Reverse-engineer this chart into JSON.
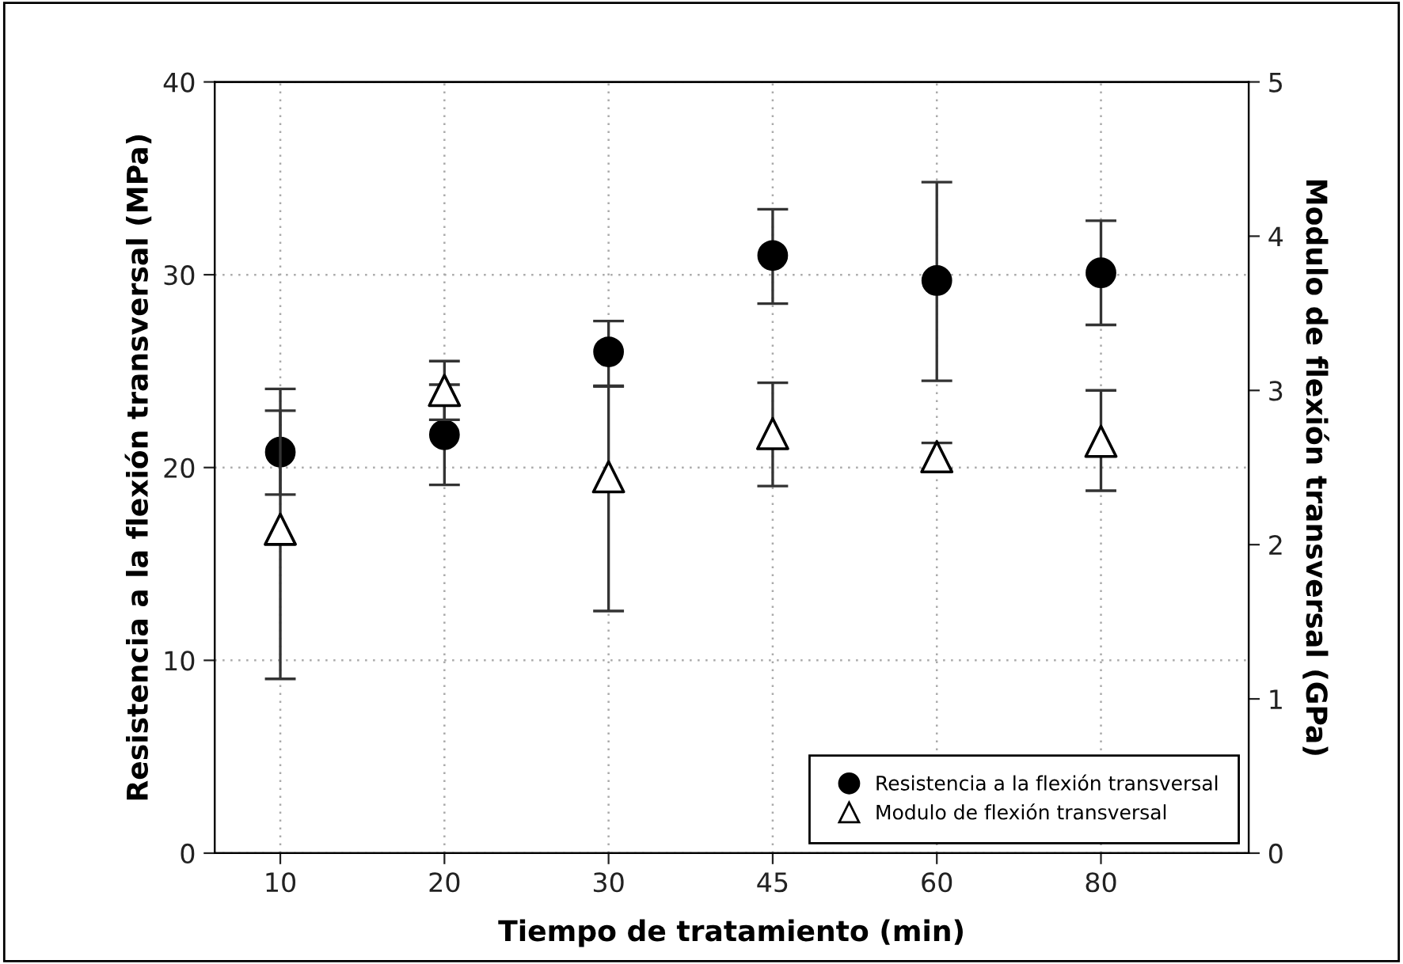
{
  "chart_data": {
    "type": "scatter",
    "xlabel": "Tiempo de tratamiento (min)",
    "ylabel": "Resistencia a la flexión transversal (MPa)",
    "y2label": "Modulo de flexión transversal (GPa)",
    "categories": [
      "10",
      "20",
      "30",
      "45",
      "60",
      "80"
    ],
    "series": [
      {
        "name": "Resistencia a la flexión transversal",
        "color": "#000000",
        "marker": "circle",
        "values": [
          20.8,
          21.7,
          26.0,
          31.0,
          29.7,
          30.1
        ],
        "errors": [
          [
            18.6,
            22.95
          ],
          [
            19.1,
            24.3
          ],
          [
            24.2,
            27.6
          ],
          [
            28.5,
            33.4
          ],
          [
            24.5,
            34.8
          ],
          [
            27.4,
            32.8
          ]
        ]
      },
      {
        "name": "Modulo de flexión transversal",
        "color": "#000000",
        "marker": "triangle",
        "axis": "y2",
        "values": [
          2.1,
          3.0,
          2.44,
          2.72,
          2.57,
          2.67
        ],
        "errors": [
          [
            1.13,
            3.01
          ],
          [
            2.81,
            3.19
          ],
          [
            1.57,
            3.03
          ],
          [
            2.38,
            3.05
          ],
          [
            2.49,
            2.66
          ],
          [
            2.35,
            3.0
          ]
        ]
      }
    ],
    "ylim": [
      0,
      40
    ],
    "yticks": [
      0,
      10,
      20,
      30,
      40
    ],
    "y2lim": [
      0,
      5
    ],
    "y2ticks": [
      0,
      1,
      2,
      3,
      4,
      5
    ],
    "grid": true,
    "legend": "bottom right"
  }
}
